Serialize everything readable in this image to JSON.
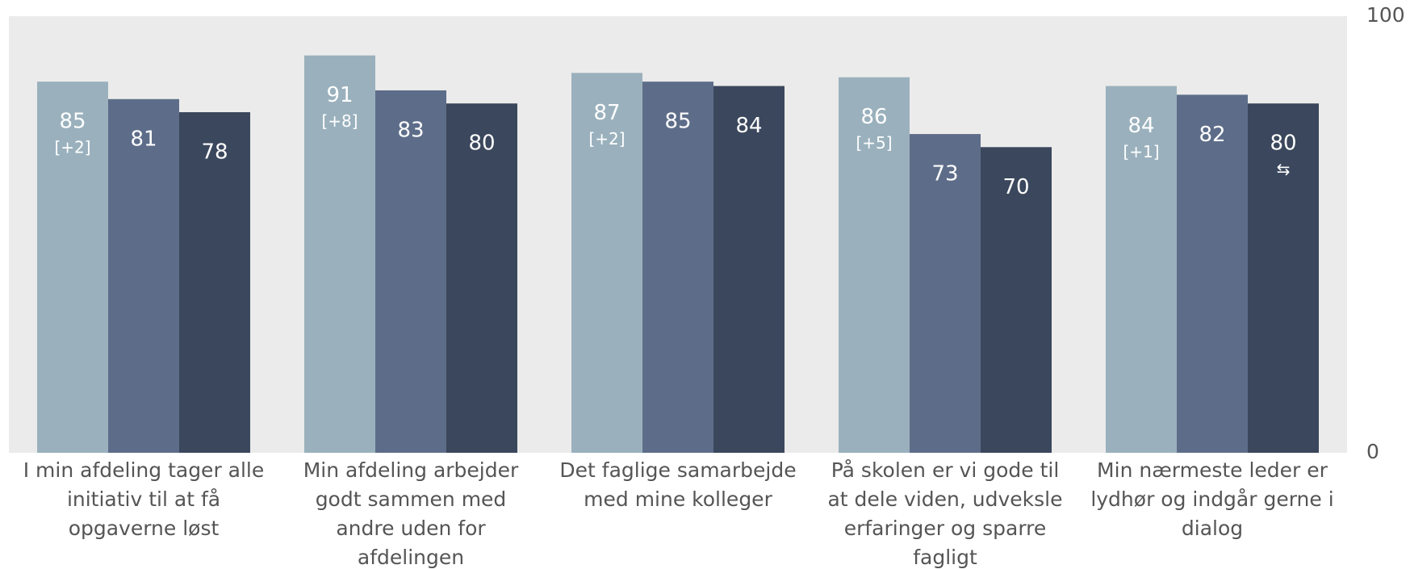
{
  "chart_data": {
    "type": "bar",
    "categories": [
      "I min afdeling tager alle initiativ til at få opgaverne løst",
      "Min afdeling arbejder godt sammen med andre uden for afdelingen",
      "Det faglige samarbejde med mine kolleger",
      "På skolen er vi gode til at dele viden, udveksle erfaringer og sparre fagligt",
      "Min nærmeste leder er lydhør og indgår gerne i dialog"
    ],
    "series": [
      {
        "color": "#9ab1bd",
        "values": [
          85,
          91,
          87,
          86,
          84
        ],
        "annotations": [
          "[+2]",
          "[+8]",
          "[+2]",
          "[+5]",
          "[+1]"
        ]
      },
      {
        "color": "#5d6d89",
        "values": [
          81,
          83,
          85,
          73,
          82
        ]
      },
      {
        "color": "#3b475c",
        "values": [
          78,
          80,
          84,
          70,
          80
        ],
        "annotations": [
          null,
          null,
          null,
          null,
          "⇆"
        ]
      }
    ],
    "ylim": [
      0,
      100
    ],
    "yticks": [
      0,
      100
    ],
    "background": "#ebebeb"
  }
}
